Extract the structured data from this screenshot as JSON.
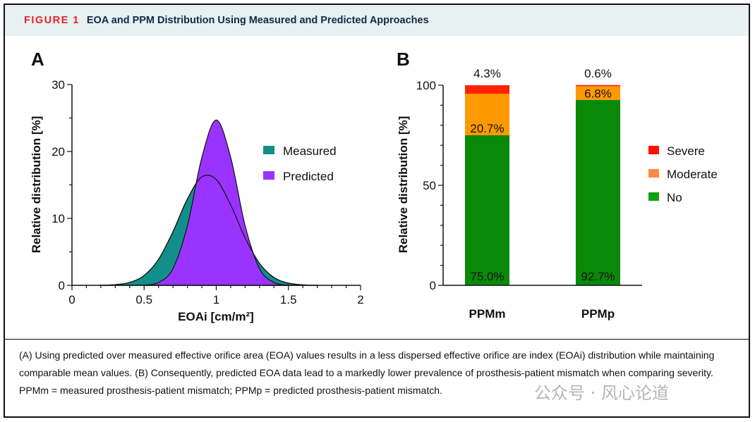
{
  "header": {
    "figure_label": "FIGURE 1",
    "title": "EOA and PPM Distribution Using Measured and Predicted Approaches"
  },
  "caption": "(A) Using predicted over measured effective orifice area (EOA) values results in a less dispersed effective orifice are index (EOAi) distribution while maintaining comparable mean values. (B) Consequently, predicted EOA data lead to a markedly lower prevalence of prosthesis-patient mismatch when comparing severity. PPMm = measured prosthesis-patient mismatch; PPMp = predicted prosthesis-patient mismatch.",
  "watermark": "公众号 · 风心论道",
  "chart_data": [
    {
      "panel": "A",
      "type": "area",
      "xlabel": "EOAi [cm/m²]",
      "ylabel": "Relative distribution [%]",
      "xlim": [
        0,
        2
      ],
      "ylim": [
        0,
        30
      ],
      "xticks": [
        "0",
        "0.5",
        "1",
        "1.5",
        "2"
      ],
      "yticks": [
        "0",
        "10",
        "20",
        "30"
      ],
      "legend_position": "right",
      "series": [
        {
          "name": "Measured",
          "color": "#128f8a",
          "x": [
            0.2,
            0.3,
            0.4,
            0.5,
            0.6,
            0.7,
            0.8,
            0.9,
            1.0,
            1.1,
            1.2,
            1.3,
            1.4,
            1.5,
            1.6,
            1.7
          ],
          "y": [
            0.02,
            0.1,
            0.43,
            1.47,
            3.89,
            8.03,
            12.9,
            16.2,
            15.8,
            12.0,
            7.09,
            3.27,
            1.17,
            0.33,
            0.07,
            0.01
          ]
        },
        {
          "name": "Predicted",
          "color": "#9933ff",
          "x": [
            0.5,
            0.6,
            0.7,
            0.8,
            0.9,
            1.0,
            1.1,
            1.2,
            1.3,
            1.4,
            1.5
          ],
          "y": [
            0.04,
            0.42,
            2.49,
            8.91,
            19.1,
            24.7,
            19.1,
            8.91,
            2.49,
            0.42,
            0.04
          ]
        }
      ]
    },
    {
      "panel": "B",
      "type": "bar",
      "stacked": true,
      "ylabel": "Relative distribution [%]",
      "ylim": [
        0,
        100
      ],
      "yticks": [
        "0",
        "50",
        "100"
      ],
      "categories": [
        "PPMm",
        "PPMp"
      ],
      "legend_position": "right",
      "series": [
        {
          "name": "No",
          "color": "#088a08",
          "legend_color": "#12a012",
          "values": [
            75.0,
            92.7
          ],
          "labels": [
            "75.0%",
            "92.7%"
          ]
        },
        {
          "name": "Moderate",
          "color": "#ff9900",
          "legend_color": "#ff8844",
          "values": [
            20.7,
            6.8
          ],
          "labels": [
            "20.7%",
            "6.8%"
          ]
        },
        {
          "name": "Severe",
          "color": "#ff2200",
          "legend_color": "#ff1100",
          "values": [
            4.3,
            0.6
          ],
          "labels": [
            "4.3%",
            "0.6%"
          ]
        }
      ]
    }
  ]
}
